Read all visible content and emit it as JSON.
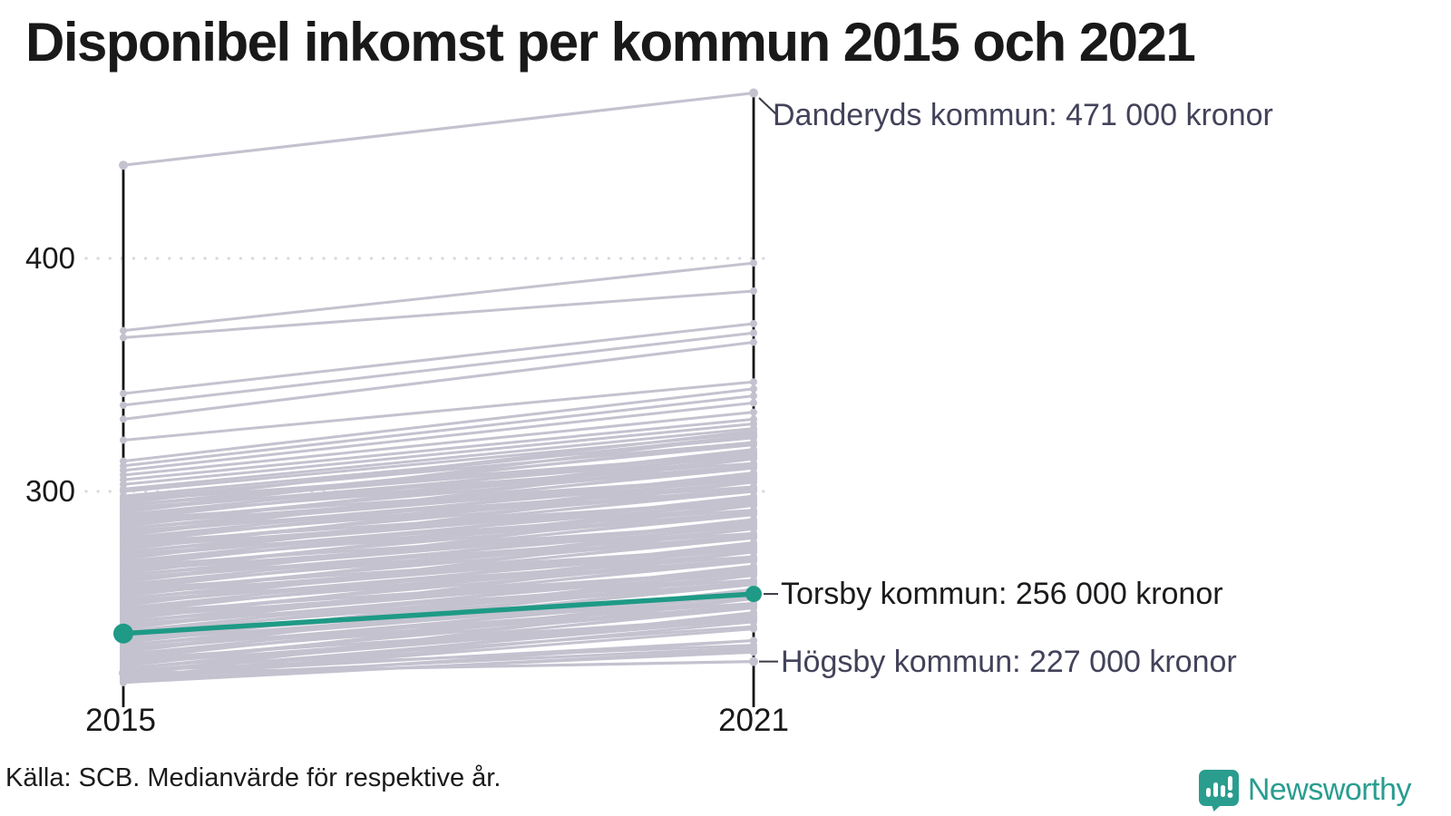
{
  "title": "Disponibel inkomst per kommun 2015 och 2021",
  "source": "Källa: SCB. Medianvärde för respektive år.",
  "branding": {
    "name": "Newsworthy",
    "icon": "speech-bubble-bar-chart-icon",
    "color": "#2a9d8f"
  },
  "chart_data": {
    "type": "line",
    "subtype": "slopegraph",
    "x_categories": [
      "2015",
      "2021"
    ],
    "y_ticks": [
      400,
      300
    ],
    "y_tick_labels": [
      "400",
      "300"
    ],
    "y_unit": "tusen kronor",
    "ylim": [
      205,
      480
    ],
    "grid": "dotted-horizontal",
    "colors": {
      "highlight": "#1e9a86",
      "background_line": "#c4c2cf",
      "background_dot": "#bdbbca",
      "axis": "#111111",
      "grid": "#d9d8e0",
      "callout": "#3a3a44"
    },
    "annotations": [
      {
        "series": "Danderyds kommun",
        "year": "2021",
        "value": 471,
        "label": "Danderyds kommun: 471 000 kronor",
        "highlighted": false
      },
      {
        "series": "Torsby kommun",
        "year": "2021",
        "value": 256,
        "label": "Torsby kommun: 256 000 kronor",
        "highlighted": true
      },
      {
        "series": "Högsby kommun",
        "year": "2021",
        "value": 227,
        "label": "Högsby kommun: 227 000 kronor",
        "highlighted": false
      }
    ],
    "highlighted_series": {
      "name": "Torsby kommun",
      "values": [
        239,
        256
      ]
    },
    "named_series": [
      {
        "name": "Danderyds kommun",
        "values": [
          440,
          471
        ]
      },
      {
        "name": "Högsby kommun",
        "values": [
          222,
          227
        ]
      }
    ],
    "background_series": [
      [
        369,
        398
      ],
      [
        366,
        386
      ],
      [
        342,
        372
      ],
      [
        337,
        368
      ],
      [
        331,
        364
      ],
      [
        322,
        347
      ],
      [
        313,
        344
      ],
      [
        311,
        341
      ],
      [
        309,
        338
      ],
      [
        307,
        334
      ],
      [
        305,
        331
      ],
      [
        303,
        329
      ],
      [
        301,
        327
      ],
      [
        300,
        325
      ],
      [
        298,
        323
      ],
      [
        297,
        321
      ],
      [
        296,
        324
      ],
      [
        296,
        316
      ],
      [
        295,
        326
      ],
      [
        294,
        316
      ],
      [
        294,
        320
      ],
      [
        293,
        312
      ],
      [
        292,
        321
      ],
      [
        292,
        315
      ],
      [
        291,
        324
      ],
      [
        290,
        311
      ],
      [
        290,
        317
      ],
      [
        289,
        314
      ],
      [
        288,
        306
      ],
      [
        288,
        318
      ],
      [
        287,
        311
      ],
      [
        286,
        314
      ],
      [
        286,
        306
      ],
      [
        285,
        316
      ],
      [
        284,
        306
      ],
      [
        284,
        310
      ],
      [
        283,
        302
      ],
      [
        282,
        311
      ],
      [
        282,
        305
      ],
      [
        281,
        314
      ],
      [
        280,
        301
      ],
      [
        280,
        307
      ],
      [
        279,
        304
      ],
      [
        278,
        296
      ],
      [
        278,
        308
      ],
      [
        277,
        301
      ],
      [
        276,
        304
      ],
      [
        276,
        296
      ],
      [
        275,
        306
      ],
      [
        274,
        296
      ],
      [
        274,
        300
      ],
      [
        273,
        292
      ],
      [
        272,
        301
      ],
      [
        272,
        295
      ],
      [
        271,
        304
      ],
      [
        270,
        291
      ],
      [
        270,
        297
      ],
      [
        269,
        294
      ],
      [
        268,
        286
      ],
      [
        268,
        298
      ],
      [
        267,
        291
      ],
      [
        266,
        294
      ],
      [
        266,
        286
      ],
      [
        265,
        296
      ],
      [
        264,
        286
      ],
      [
        264,
        290
      ],
      [
        263,
        282
      ],
      [
        262,
        291
      ],
      [
        262,
        285
      ],
      [
        261,
        294
      ],
      [
        260,
        281
      ],
      [
        260,
        287
      ],
      [
        259,
        284
      ],
      [
        258,
        276
      ],
      [
        258,
        288
      ],
      [
        257,
        281
      ],
      [
        256,
        284
      ],
      [
        256,
        276
      ],
      [
        255,
        286
      ],
      [
        254,
        276
      ],
      [
        254,
        280
      ],
      [
        253,
        272
      ],
      [
        252,
        281
      ],
      [
        252,
        275
      ],
      [
        251,
        284
      ],
      [
        250,
        271
      ],
      [
        250,
        277
      ],
      [
        249,
        274
      ],
      [
        248,
        266
      ],
      [
        248,
        278
      ],
      [
        247,
        271
      ],
      [
        246,
        274
      ],
      [
        246,
        266
      ],
      [
        245,
        276
      ],
      [
        244,
        266
      ],
      [
        244,
        270
      ],
      [
        243,
        262
      ],
      [
        242,
        271
      ],
      [
        242,
        265
      ],
      [
        241,
        274
      ],
      [
        240,
        261
      ],
      [
        240,
        267
      ],
      [
        239,
        264
      ],
      [
        238,
        256
      ],
      [
        238,
        268
      ],
      [
        237,
        261
      ],
      [
        236,
        264
      ],
      [
        236,
        256
      ],
      [
        235,
        266
      ],
      [
        234,
        256
      ],
      [
        234,
        260
      ],
      [
        233,
        252
      ],
      [
        232,
        261
      ],
      [
        232,
        255
      ],
      [
        231,
        264
      ],
      [
        230,
        251
      ],
      [
        230,
        257
      ],
      [
        229,
        254
      ],
      [
        228,
        246
      ],
      [
        228,
        258
      ],
      [
        227,
        251
      ],
      [
        226,
        254
      ],
      [
        226,
        246
      ],
      [
        225,
        256
      ],
      [
        224,
        246
      ],
      [
        224,
        250
      ],
      [
        223,
        242
      ],
      [
        222,
        251
      ],
      [
        222,
        245
      ],
      [
        221,
        254
      ],
      [
        220,
        241
      ],
      [
        220,
        247
      ],
      [
        219,
        244
      ],
      [
        218,
        236
      ],
      [
        218,
        248
      ],
      [
        220,
        233
      ],
      [
        219,
        231
      ],
      [
        221,
        236
      ],
      [
        218,
        232
      ],
      [
        223,
        234
      ]
    ]
  }
}
